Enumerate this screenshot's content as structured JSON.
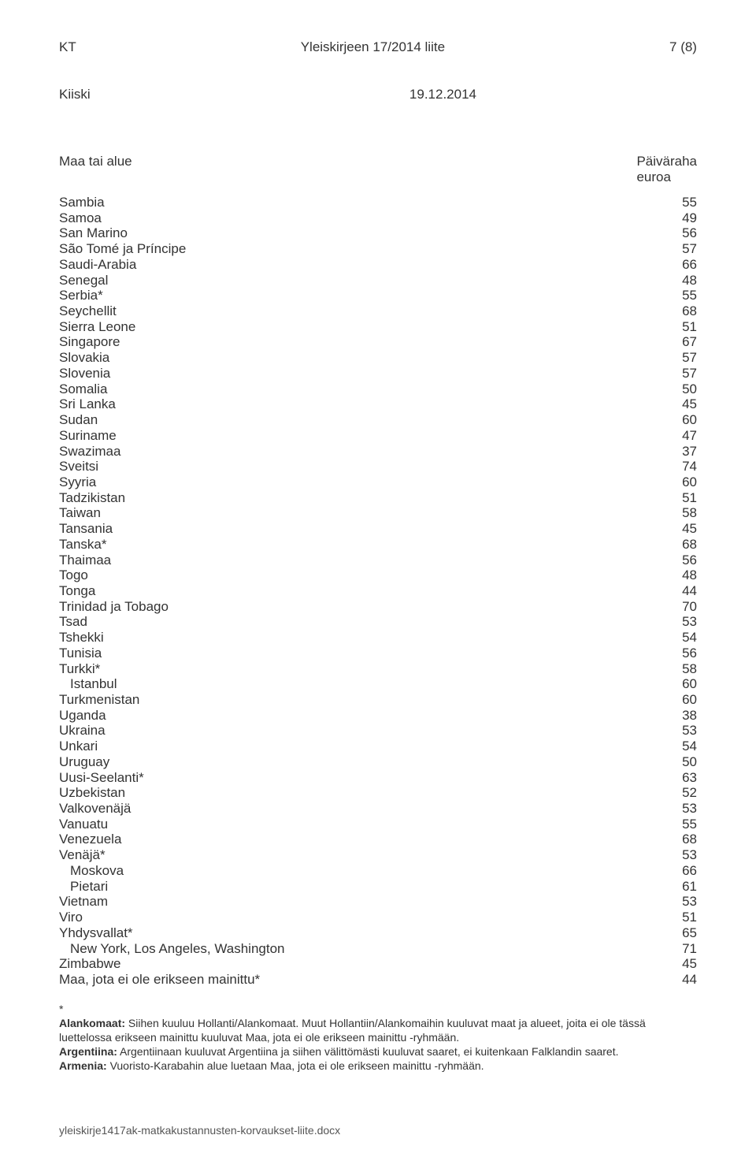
{
  "header": {
    "left": "KT",
    "center": "Yleiskirjeen 17/2014 liite",
    "right": "7 (8)"
  },
  "author": "Kiiski",
  "date": "19.12.2014",
  "table": {
    "header_left": "Maa tai alue",
    "header_right_line1": "Päiväraha",
    "header_right_line2": "euroa"
  },
  "rows": [
    {
      "name": "Sambia",
      "value": "55",
      "indent": false
    },
    {
      "name": "Samoa",
      "value": "49",
      "indent": false
    },
    {
      "name": "San Marino",
      "value": "56",
      "indent": false
    },
    {
      "name": "São Tomé ja Príncipe",
      "value": "57",
      "indent": false
    },
    {
      "name": "Saudi-Arabia",
      "value": "66",
      "indent": false
    },
    {
      "name": "Senegal",
      "value": "48",
      "indent": false
    },
    {
      "name": "Serbia*",
      "value": "55",
      "indent": false
    },
    {
      "name": "Seychellit",
      "value": "68",
      "indent": false
    },
    {
      "name": "Sierra Leone",
      "value": "51",
      "indent": false
    },
    {
      "name": "Singapore",
      "value": "67",
      "indent": false
    },
    {
      "name": "Slovakia",
      "value": "57",
      "indent": false
    },
    {
      "name": "Slovenia",
      "value": "57",
      "indent": false
    },
    {
      "name": "Somalia",
      "value": "50",
      "indent": false
    },
    {
      "name": "Sri Lanka",
      "value": "45",
      "indent": false
    },
    {
      "name": "Sudan",
      "value": "60",
      "indent": false
    },
    {
      "name": "Suriname",
      "value": "47",
      "indent": false
    },
    {
      "name": "Swazimaa",
      "value": "37",
      "indent": false
    },
    {
      "name": "Sveitsi",
      "value": "74",
      "indent": false
    },
    {
      "name": "Syyria",
      "value": "60",
      "indent": false
    },
    {
      "name": "Tadzikistan",
      "value": "51",
      "indent": false
    },
    {
      "name": "Taiwan",
      "value": "58",
      "indent": false
    },
    {
      "name": "Tansania",
      "value": "45",
      "indent": false
    },
    {
      "name": "Tanska*",
      "value": "68",
      "indent": false
    },
    {
      "name": "Thaimaa",
      "value": "56",
      "indent": false
    },
    {
      "name": "Togo",
      "value": "48",
      "indent": false
    },
    {
      "name": "Tonga",
      "value": "44",
      "indent": false
    },
    {
      "name": "Trinidad ja Tobago",
      "value": "70",
      "indent": false
    },
    {
      "name": "Tsad",
      "value": "53",
      "indent": false
    },
    {
      "name": "Tshekki",
      "value": "54",
      "indent": false
    },
    {
      "name": "Tunisia",
      "value": "56",
      "indent": false
    },
    {
      "name": "Turkki*",
      "value": "58",
      "indent": false
    },
    {
      "name": "Istanbul",
      "value": "60",
      "indent": true
    },
    {
      "name": "Turkmenistan",
      "value": "60",
      "indent": false
    },
    {
      "name": "Uganda",
      "value": "38",
      "indent": false
    },
    {
      "name": "Ukraina",
      "value": "53",
      "indent": false
    },
    {
      "name": "Unkari",
      "value": "54",
      "indent": false
    },
    {
      "name": "Uruguay",
      "value": "50",
      "indent": false
    },
    {
      "name": "Uusi-Seelanti*",
      "value": "63",
      "indent": false
    },
    {
      "name": "Uzbekistan",
      "value": "52",
      "indent": false
    },
    {
      "name": "Valkovenäjä",
      "value": "53",
      "indent": false
    },
    {
      "name": "Vanuatu",
      "value": "55",
      "indent": false
    },
    {
      "name": "Venezuela",
      "value": "68",
      "indent": false
    },
    {
      "name": "Venäjä*",
      "value": "53",
      "indent": false
    },
    {
      "name": "Moskova",
      "value": "66",
      "indent": true
    },
    {
      "name": "Pietari",
      "value": "61",
      "indent": true
    },
    {
      "name": "Vietnam",
      "value": "53",
      "indent": false
    },
    {
      "name": "Viro",
      "value": "51",
      "indent": false
    },
    {
      "name": "Yhdysvallat*",
      "value": "65",
      "indent": false
    },
    {
      "name": "New York, Los Angeles, Washington",
      "value": "71",
      "indent": true
    },
    {
      "name": "Zimbabwe",
      "value": "45",
      "indent": false
    },
    {
      "name": "Maa, jota ei ole erikseen mainittu*",
      "value": "44",
      "indent": false
    }
  ],
  "footnote": {
    "asterisk": "*",
    "alankomaat_label": "Alankomaat:",
    "alankomaat_text": " Siihen kuuluu Hollanti/Alankomaat. Muut Hollantiin/Alankomaihin kuuluvat maat ja alueet, joita ei ole tässä luettelossa erikseen mainittu kuuluvat Maa, jota ei ole erikseen mainittu -ryhmään.",
    "argentiina_label": "Argentiina:",
    "argentiina_text": " Argentiinaan kuuluvat Argentiina ja siihen välittömästi kuuluvat saaret, ei kuitenkaan Falklandin saaret.",
    "armenia_label": "Armenia:",
    "armenia_text": " Vuoristo-Karabahin alue luetaan Maa, jota ei ole erikseen mainittu -ryhmään."
  },
  "footer": "yleiskirje1417ak-matkakustannusten-korvaukset-liite.docx"
}
